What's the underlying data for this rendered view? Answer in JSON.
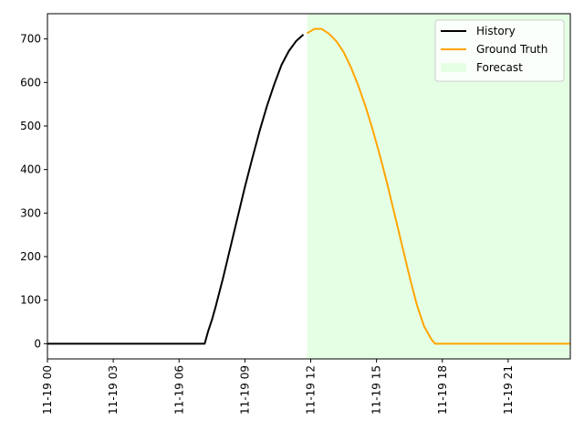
{
  "chart_data": {
    "type": "line",
    "title": "",
    "xlabel": "",
    "ylabel": "",
    "x_axis": {
      "kind": "datetime",
      "range": [
        "11-19 00:00",
        "11-19 23:50"
      ],
      "ticks": [
        "11-19 00",
        "11-19 03",
        "11-19 06",
        "11-19 09",
        "11-19 12",
        "11-19 15",
        "11-19 18",
        "11-19 21"
      ]
    },
    "y_axis": {
      "range": [
        -35,
        758
      ],
      "ticks": [
        0,
        100,
        200,
        300,
        400,
        500,
        600,
        700
      ]
    },
    "grid": false,
    "legend": {
      "placement": "top-right",
      "entries": [
        "History",
        "Ground Truth",
        "Forecast"
      ]
    },
    "forecast_region": {
      "label": "Forecast",
      "start": "11-19 11:50",
      "end": "11-19 23:50",
      "color": "#e5ffe5"
    },
    "series": [
      {
        "name": "History",
        "color": "#000000",
        "points": [
          [
            "11-19 00:00",
            0
          ],
          [
            "11-19 01:00",
            0
          ],
          [
            "11-19 02:00",
            0
          ],
          [
            "11-19 03:00",
            0
          ],
          [
            "11-19 04:00",
            0
          ],
          [
            "11-19 05:00",
            0
          ],
          [
            "11-19 06:00",
            0
          ],
          [
            "11-19 07:00",
            0
          ],
          [
            "11-19 07:10",
            0
          ],
          [
            "11-19 07:20",
            30
          ],
          [
            "11-19 07:30",
            55
          ],
          [
            "11-19 07:40",
            85
          ],
          [
            "11-19 08:00",
            150
          ],
          [
            "11-19 08:20",
            220
          ],
          [
            "11-19 08:40",
            290
          ],
          [
            "11-19 09:00",
            360
          ],
          [
            "11-19 09:20",
            425
          ],
          [
            "11-19 09:40",
            488
          ],
          [
            "11-19 10:00",
            545
          ],
          [
            "11-19 10:20",
            595
          ],
          [
            "11-19 10:40",
            640
          ],
          [
            "11-19 11:00",
            672
          ],
          [
            "11-19 11:20",
            695
          ],
          [
            "11-19 11:40",
            710
          ]
        ]
      },
      {
        "name": "Ground Truth",
        "color": "#ffa500",
        "points": [
          [
            "11-19 11:50",
            713
          ],
          [
            "11-19 12:10",
            723
          ],
          [
            "11-19 12:30",
            723
          ],
          [
            "11-19 12:50",
            712
          ],
          [
            "11-19 13:10",
            695
          ],
          [
            "11-19 13:30",
            670
          ],
          [
            "11-19 13:50",
            635
          ],
          [
            "11-19 14:10",
            593
          ],
          [
            "11-19 14:30",
            545
          ],
          [
            "11-19 14:50",
            490
          ],
          [
            "11-19 15:10",
            430
          ],
          [
            "11-19 15:30",
            365
          ],
          [
            "11-19 15:50",
            295
          ],
          [
            "11-19 16:10",
            225
          ],
          [
            "11-19 16:30",
            155
          ],
          [
            "11-19 16:50",
            90
          ],
          [
            "11-19 17:10",
            40
          ],
          [
            "11-19 17:30",
            10
          ],
          [
            "11-19 17:40",
            0
          ],
          [
            "11-19 18:00",
            0
          ],
          [
            "11-19 19:00",
            0
          ],
          [
            "11-19 20:00",
            0
          ],
          [
            "11-19 21:00",
            0
          ],
          [
            "11-19 22:00",
            0
          ],
          [
            "11-19 23:00",
            0
          ],
          [
            "11-19 23:50",
            0
          ]
        ]
      }
    ]
  }
}
